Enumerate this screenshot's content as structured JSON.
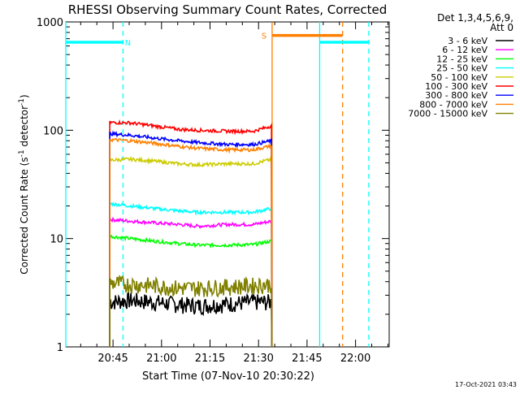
{
  "chart_data": {
    "type": "line",
    "title": "RHESSI Observing Summary Count Rates, Corrected",
    "xlabel": "Start Time (07-Nov-10 20:30:22)",
    "ylabel_main": "Corrected Count Rate (s",
    "ylabel_sup1": "-1",
    "ylabel_mid": " detector",
    "ylabel_sup2": "-1",
    "ylabel_end": ")",
    "x_unit": "minutes since 20:30:22",
    "x_range": [
      0,
      100
    ],
    "y_scale": "log",
    "y_range": [
      1,
      1000
    ],
    "x_ticks": [
      {
        "label": "20:45",
        "value": 14.6
      },
      {
        "label": "21:00",
        "value": 29.6
      },
      {
        "label": "21:15",
        "value": 44.6
      },
      {
        "label": "21:30",
        "value": 59.6
      },
      {
        "label": "21:45",
        "value": 74.6
      },
      {
        "label": "22:00",
        "value": 89.6
      }
    ],
    "y_ticks": [
      {
        "label": "1",
        "value": 1
      },
      {
        "label": "10",
        "value": 10
      },
      {
        "label": "100",
        "value": 100
      },
      {
        "label": "1000",
        "value": 1000
      }
    ],
    "legend_header": [
      "Det 1,3,4,5,6,9,",
      "Att 0"
    ],
    "series": [
      {
        "name": "3 - 6 keV",
        "color": "#000000",
        "values": [
          [
            13.6,
            2.6
          ],
          [
            20,
            2.7
          ],
          [
            27,
            2.6
          ],
          [
            33,
            2.5
          ],
          [
            41,
            2.4
          ],
          [
            50,
            2.5
          ],
          [
            58,
            2.6
          ],
          [
            63.7,
            2.6
          ]
        ]
      },
      {
        "name": "6 - 12 keV",
        "color": "#ff00ff",
        "values": [
          [
            13.6,
            15
          ],
          [
            20,
            14.5
          ],
          [
            27,
            14
          ],
          [
            35,
            13.5
          ],
          [
            41,
            13
          ],
          [
            50,
            13.5
          ],
          [
            58,
            13.5
          ],
          [
            63.7,
            14.5
          ]
        ]
      },
      {
        "name": "12 - 25 keV",
        "color": "#00ff00",
        "values": [
          [
            13.6,
            10.5
          ],
          [
            20,
            10
          ],
          [
            27,
            9.5
          ],
          [
            35,
            9
          ],
          [
            41,
            8.7
          ],
          [
            50,
            8.7
          ],
          [
            58,
            8.8
          ],
          [
            63.7,
            9.5
          ]
        ]
      },
      {
        "name": "25 - 50 keV",
        "color": "#00ffff",
        "values": [
          [
            13.6,
            21
          ],
          [
            20,
            20
          ],
          [
            27,
            19
          ],
          [
            35,
            18
          ],
          [
            41,
            17.5
          ],
          [
            50,
            17.5
          ],
          [
            58,
            17.5
          ],
          [
            63.7,
            19
          ]
        ]
      },
      {
        "name": "50 - 100 keV",
        "color": "#cccc00",
        "values": [
          [
            13.6,
            53
          ],
          [
            20,
            54
          ],
          [
            27,
            52
          ],
          [
            35,
            49
          ],
          [
            41,
            48
          ],
          [
            50,
            49
          ],
          [
            58,
            49
          ],
          [
            63.7,
            54
          ]
        ]
      },
      {
        "name": "100 - 300 keV",
        "color": "#ff0000",
        "values": [
          [
            13.6,
            118
          ],
          [
            20,
            117
          ],
          [
            27,
            110
          ],
          [
            35,
            102
          ],
          [
            41,
            100
          ],
          [
            50,
            98
          ],
          [
            58,
            98
          ],
          [
            63.7,
            110
          ]
        ]
      },
      {
        "name": "300 - 800 keV",
        "color": "#0000ff",
        "values": [
          [
            13.6,
            93
          ],
          [
            20,
            90
          ],
          [
            27,
            85
          ],
          [
            35,
            80
          ],
          [
            41,
            77
          ],
          [
            50,
            74
          ],
          [
            58,
            74
          ],
          [
            63.7,
            80
          ]
        ]
      },
      {
        "name": "800 - 7000 keV",
        "color": "#ff8000",
        "values": [
          [
            13.6,
            82
          ],
          [
            20,
            80
          ],
          [
            27,
            76
          ],
          [
            35,
            71
          ],
          [
            41,
            68
          ],
          [
            50,
            66
          ],
          [
            58,
            66
          ],
          [
            63.7,
            72
          ]
        ]
      },
      {
        "name": "7000 - 15000 keV",
        "color": "#808000",
        "values": [
          [
            13.6,
            3.9
          ],
          [
            20,
            3.8
          ],
          [
            27,
            3.7
          ],
          [
            35,
            3.5
          ],
          [
            41,
            3.5
          ],
          [
            50,
            3.6
          ],
          [
            58,
            3.7
          ],
          [
            63.7,
            3.8
          ]
        ]
      }
    ],
    "bars": [
      {
        "label": "N",
        "color": "#00ffff",
        "y": 650,
        "x_ranges": [
          [
            0,
            17.7
          ],
          [
            78.5,
            93.7
          ]
        ],
        "label_x": 19.2
      },
      {
        "label": "S",
        "color": "#ff8000",
        "y": 750,
        "x_ranges": [
          [
            63.8,
            85.6
          ]
        ],
        "label_x": 61.3
      }
    ],
    "solid_lines": [
      {
        "x": 0,
        "color": "#00ffff"
      },
      {
        "x": 78.5,
        "color": "#00ffff"
      },
      {
        "x": 63.8,
        "color": "#ff8000"
      }
    ],
    "dashed_lines": [
      {
        "x": 17.7,
        "color": "#00ffff"
      },
      {
        "x": 93.7,
        "color": "#00ffff"
      },
      {
        "x": 85.6,
        "color": "#ff8000"
      }
    ],
    "footer_date": "17-Oct-2021 03:43"
  }
}
